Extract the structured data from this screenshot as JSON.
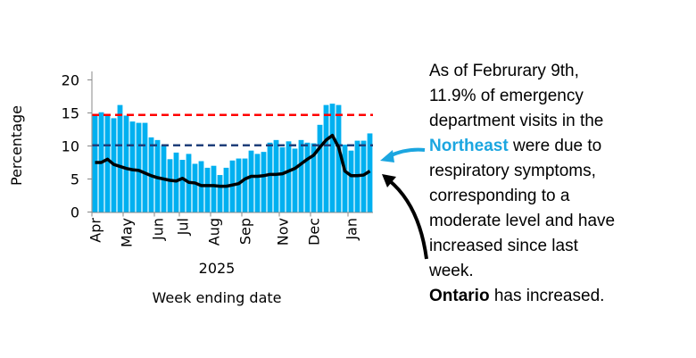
{
  "chart_data": {
    "type": "bar",
    "title": "",
    "xlabel": "Week ending date",
    "xlabel_year": "2025",
    "ylabel": "Percentage",
    "ylim": [
      0,
      24
    ],
    "yticks": [
      0,
      5,
      10,
      15,
      20
    ],
    "x_labels": [
      {
        "label": "Apr",
        "week": 0
      },
      {
        "label": "May",
        "week": 5
      },
      {
        "label": "Jun",
        "week": 10
      },
      {
        "label": "Jul",
        "week": 14
      },
      {
        "label": "Aug",
        "week": 19
      },
      {
        "label": "Sep",
        "week": 24
      },
      {
        "label": "Nov",
        "week": 30
      },
      {
        "label": "Dec",
        "week": 35
      },
      {
        "label": "Jan",
        "week": 41
      }
    ],
    "series": [
      {
        "type": "bar",
        "region": "Northeast",
        "color": "#00b0f0",
        "values": [
          14.7,
          15.1,
          14.6,
          14.2,
          16.2,
          14.6,
          13.7,
          13.5,
          13.5,
          11.3,
          10.9,
          10.1,
          8.0,
          9.0,
          7.9,
          8.8,
          7.3,
          7.7,
          6.7,
          7.0,
          5.6,
          6.7,
          7.8,
          8.1,
          8.1,
          9.3,
          8.8,
          9.1,
          10.5,
          10.9,
          9.8,
          10.7,
          9.6,
          10.9,
          10.5,
          10.4,
          13.2,
          16.2,
          16.4,
          16.2,
          10.2,
          9.3,
          10.8,
          10.8,
          11.9
        ]
      },
      {
        "type": "line",
        "region": "Ontario",
        "color": "#000000",
        "values": [
          7.5,
          7.5,
          8.0,
          7.2,
          6.9,
          6.6,
          6.4,
          6.3,
          5.9,
          5.5,
          5.2,
          5.0,
          4.8,
          4.7,
          5.1,
          4.5,
          4.4,
          4.0,
          4.0,
          4.0,
          3.9,
          3.9,
          4.1,
          4.3,
          5.0,
          5.4,
          5.4,
          5.5,
          5.7,
          5.7,
          5.8,
          6.2,
          6.6,
          7.3,
          8.0,
          8.6,
          9.8,
          10.9,
          11.6,
          9.8,
          6.2,
          5.5,
          5.5,
          5.6,
          6.2
        ]
      }
    ],
    "thresholds": [
      {
        "level": "high",
        "value": 14.7,
        "color": "#ff0000",
        "style": "dashed"
      },
      {
        "level": "moderate",
        "value": 10.1,
        "color": "#1f3f7a",
        "style": "dashed"
      }
    ],
    "grid": false
  },
  "annotation": {
    "line1": "As of Februrary 9th,",
    "line2": "11.9% of emergency",
    "line3": "department visits in the",
    "region": "Northeast",
    "line4_rest": " were due to",
    "line5": "respiratory symptoms,",
    "line6": "corresponding to a",
    "line7": "moderate level and have",
    "line8": "increased since last",
    "line9": "week.",
    "province": "Ontario",
    "province_rest": " has increased.",
    "region_color": "#1ba6e0"
  }
}
